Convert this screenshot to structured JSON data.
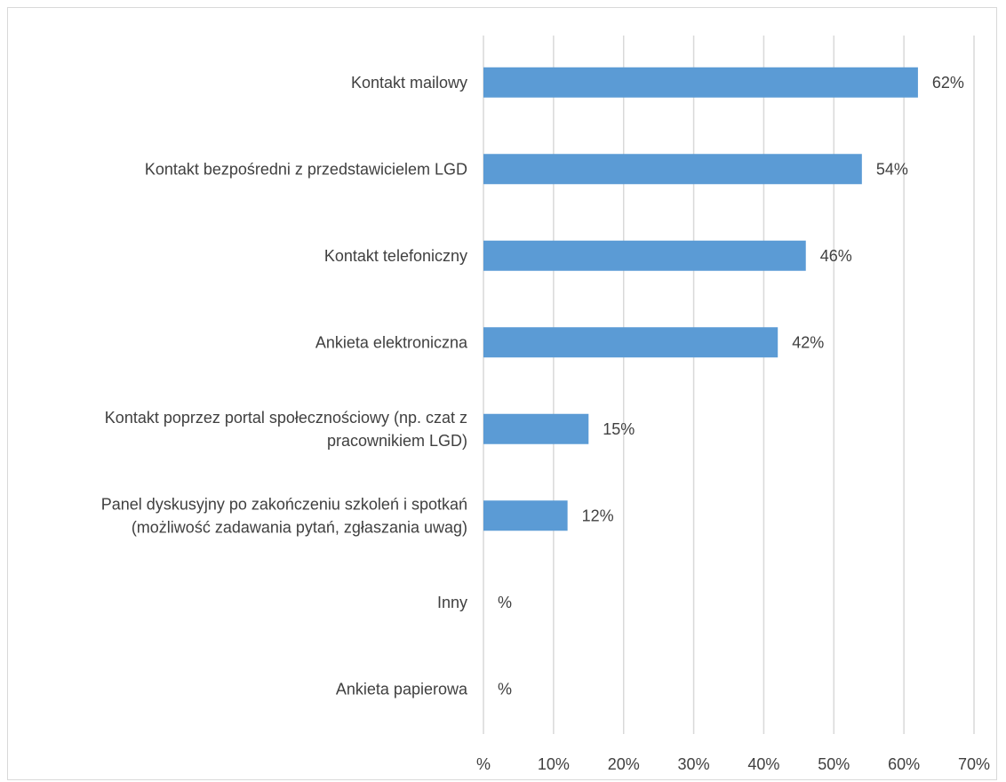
{
  "chart_data": {
    "type": "bar",
    "orientation": "horizontal",
    "categories": [
      [
        "Kontakt mailowy"
      ],
      [
        "Kontakt bezpośredni z przedstawicielem LGD"
      ],
      [
        "Kontakt telefoniczny"
      ],
      [
        "Ankieta elektroniczna"
      ],
      [
        "Kontakt poprzez portal społecznościowy (np. czat z",
        "pracownikiem LGD)"
      ],
      [
        "Panel dyskusyjny po zakończeniu szkoleń i spotkań",
        "(możliwość zadawania pytań, zgłaszania uwag)"
      ],
      [
        "Inny"
      ],
      [
        "Ankieta papierowa"
      ]
    ],
    "values": [
      62,
      54,
      46,
      42,
      15,
      12,
      null,
      null
    ],
    "data_labels": [
      "62%",
      "54%",
      "46%",
      "42%",
      "15%",
      "12%",
      "%",
      "%"
    ],
    "x_ticks": [
      0,
      10,
      20,
      30,
      40,
      50,
      60,
      70
    ],
    "x_tick_labels": [
      "%",
      "10%",
      "20%",
      "30%",
      "40%",
      "50%",
      "60%",
      "70%"
    ],
    "xlim": [
      0,
      70
    ],
    "grid": true,
    "bar_color": "#5b9bd5",
    "grid_color": "#d9d9d9",
    "text_color": "#404040"
  }
}
